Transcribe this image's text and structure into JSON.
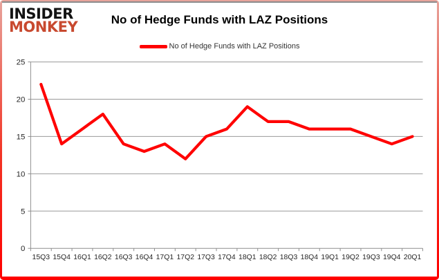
{
  "logo": {
    "line1": "INSIDER",
    "line2": "MONKEY",
    "brand_color": "#c8492f"
  },
  "header": {
    "title": "No of Hedge Funds with LAZ Positions"
  },
  "legend": {
    "label": "No of Hedge Funds with LAZ Positions",
    "swatch_color": "#ff0000"
  },
  "chart_data": {
    "type": "line",
    "title": "No of Hedge Funds with LAZ Positions",
    "categories": [
      "15Q3",
      "15Q4",
      "16Q1",
      "16Q2",
      "16Q3",
      "16Q4",
      "17Q1",
      "17Q2",
      "17Q3",
      "17Q4",
      "18Q1",
      "18Q2",
      "18Q3",
      "18Q4",
      "19Q1",
      "19Q2",
      "19Q3",
      "19Q4",
      "20Q1"
    ],
    "series": [
      {
        "name": "No of Hedge Funds with LAZ Positions",
        "values": [
          22,
          14,
          16,
          18,
          14,
          13,
          14,
          12,
          15,
          16,
          19,
          17,
          17,
          16,
          16,
          16,
          15,
          14,
          15
        ]
      }
    ],
    "xlabel": "",
    "ylabel": "",
    "ylim": [
      0,
      25
    ],
    "ytick_step": 5,
    "yticks": [
      0,
      5,
      10,
      15,
      20,
      25
    ],
    "grid": true,
    "legend_position": "top-center",
    "line_color": "#ff0000",
    "grid_color": "#999999",
    "axis_color": "#8e8e8e",
    "tick_label_color": "#262626"
  }
}
